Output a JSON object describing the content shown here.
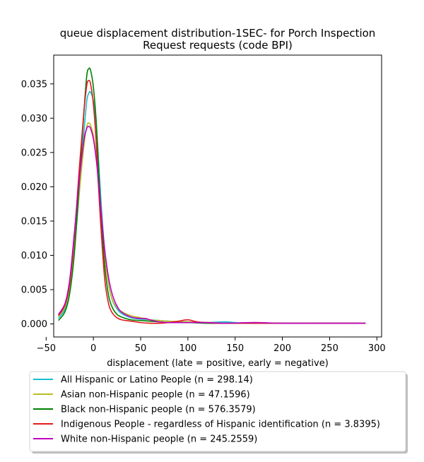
{
  "chart_data": {
    "type": "line",
    "title_lines": [
      "queue displacement distribution-1SEC-  for Porch Inspection",
      "Request  requests (code BPI)"
    ],
    "xlabel": "displacement (late = positive, early = negative)",
    "ylabel": "",
    "xlim": [
      -42,
      305
    ],
    "ylim": [
      -0.0019,
      0.0392
    ],
    "x_ticks": [
      -50,
      0,
      50,
      100,
      150,
      200,
      250,
      300
    ],
    "x_tick_labels": [
      "−50",
      "0",
      "50",
      "100",
      "150",
      "200",
      "250",
      "300"
    ],
    "y_ticks": [
      0.0,
      0.005,
      0.01,
      0.015,
      0.02,
      0.025,
      0.03,
      0.035
    ],
    "y_tick_labels": [
      "0.000",
      "0.005",
      "0.010",
      "0.015",
      "0.020",
      "0.025",
      "0.030",
      "0.035"
    ],
    "grid": false,
    "legend_position": "below",
    "series": [
      {
        "name": "All Hispanic or Latino People (n = 298.14)",
        "color": "#17becf",
        "x": [
          -37,
          -30,
          -25,
          -20,
          -15,
          -10,
          -7,
          -5,
          -3,
          0,
          3,
          5,
          8,
          12,
          16,
          20,
          25,
          30,
          40,
          50,
          60,
          70,
          80,
          100,
          120,
          140,
          160,
          180,
          200,
          240,
          288
        ],
        "y": [
          0.0008,
          0.0022,
          0.005,
          0.011,
          0.019,
          0.028,
          0.0325,
          0.0336,
          0.0338,
          0.0325,
          0.029,
          0.025,
          0.018,
          0.0105,
          0.0058,
          0.0035,
          0.0022,
          0.0015,
          0.0009,
          0.0007,
          0.0006,
          0.0005,
          0.0004,
          0.0002,
          0.0002,
          0.0003,
          0.0001,
          0.0001,
          0.0001,
          0.0001,
          0.0001
        ]
      },
      {
        "name": "Asian non-Hispanic people (n = 47.1596)",
        "color": "#bcbd22",
        "x": [
          -37,
          -30,
          -25,
          -20,
          -15,
          -10,
          -7,
          -5,
          -3,
          0,
          3,
          5,
          8,
          12,
          16,
          20,
          25,
          30,
          40,
          50,
          60,
          70,
          80,
          100,
          120,
          140,
          160,
          180,
          200,
          240,
          288
        ],
        "y": [
          0.0011,
          0.0025,
          0.0055,
          0.0115,
          0.019,
          0.026,
          0.0288,
          0.0293,
          0.029,
          0.0275,
          0.0245,
          0.021,
          0.016,
          0.0098,
          0.0058,
          0.0036,
          0.0024,
          0.0018,
          0.0012,
          0.0009,
          0.0006,
          0.0005,
          0.0004,
          0.0003,
          0.0002,
          0.0001,
          0.0001,
          0.0001,
          0.0001,
          0.0001,
          0.0001
        ]
      },
      {
        "name": "Black non-Hispanic people (n = 576.3579)",
        "color": "#008000",
        "x": [
          -37,
          -30,
          -25,
          -20,
          -15,
          -10,
          -7,
          -5,
          -3,
          0,
          3,
          5,
          8,
          12,
          16,
          20,
          25,
          30,
          40,
          50,
          60,
          70,
          80,
          100,
          120,
          140,
          160,
          180,
          200,
          240,
          288
        ],
        "y": [
          0.0005,
          0.0018,
          0.0045,
          0.0105,
          0.0205,
          0.031,
          0.0362,
          0.0372,
          0.037,
          0.0345,
          0.0295,
          0.024,
          0.0165,
          0.0085,
          0.0042,
          0.0024,
          0.0014,
          0.001,
          0.0006,
          0.0005,
          0.0004,
          0.0003,
          0.0002,
          0.0002,
          0.0001,
          0.0001,
          0.0001,
          0.0001,
          0.0001,
          0.0001,
          0.0001
        ]
      },
      {
        "name": "Indigenous People - regardless of Hispanic identification (n = 3.8395)",
        "color": "#e31a1c",
        "x": [
          -37,
          -30,
          -25,
          -20,
          -15,
          -10,
          -7,
          -5,
          -3,
          0,
          3,
          5,
          8,
          12,
          16,
          20,
          25,
          30,
          40,
          50,
          60,
          70,
          80,
          90,
          100,
          110,
          130,
          150,
          180,
          220,
          288
        ],
        "y": [
          0.0012,
          0.0028,
          0.006,
          0.013,
          0.0225,
          0.031,
          0.0348,
          0.0355,
          0.035,
          0.032,
          0.0265,
          0.021,
          0.014,
          0.0065,
          0.003,
          0.0016,
          0.0009,
          0.0006,
          0.0004,
          0.0002,
          0.0001,
          0.0001,
          0.0002,
          0.0004,
          0.0006,
          0.0003,
          0.0001,
          0.0001,
          0.0001,
          0.0001,
          0.0001
        ]
      },
      {
        "name": "White non-Hispanic people (n = 245.2559)",
        "color": "#c000c0",
        "x": [
          -37,
          -30,
          -25,
          -20,
          -15,
          -10,
          -7,
          -5,
          -3,
          0,
          3,
          5,
          8,
          12,
          16,
          20,
          25,
          30,
          40,
          50,
          55,
          60,
          70,
          80,
          100,
          120,
          140,
          170,
          200,
          240,
          288
        ],
        "y": [
          0.0014,
          0.003,
          0.0065,
          0.0135,
          0.021,
          0.0268,
          0.0285,
          0.0288,
          0.0285,
          0.027,
          0.024,
          0.0212,
          0.0165,
          0.0108,
          0.0068,
          0.0043,
          0.0026,
          0.0017,
          0.001,
          0.0008,
          0.0008,
          0.0006,
          0.0003,
          0.0002,
          0.0002,
          0.0002,
          0.0001,
          0.0002,
          0.0001,
          0.0001,
          0.0001
        ]
      }
    ]
  }
}
